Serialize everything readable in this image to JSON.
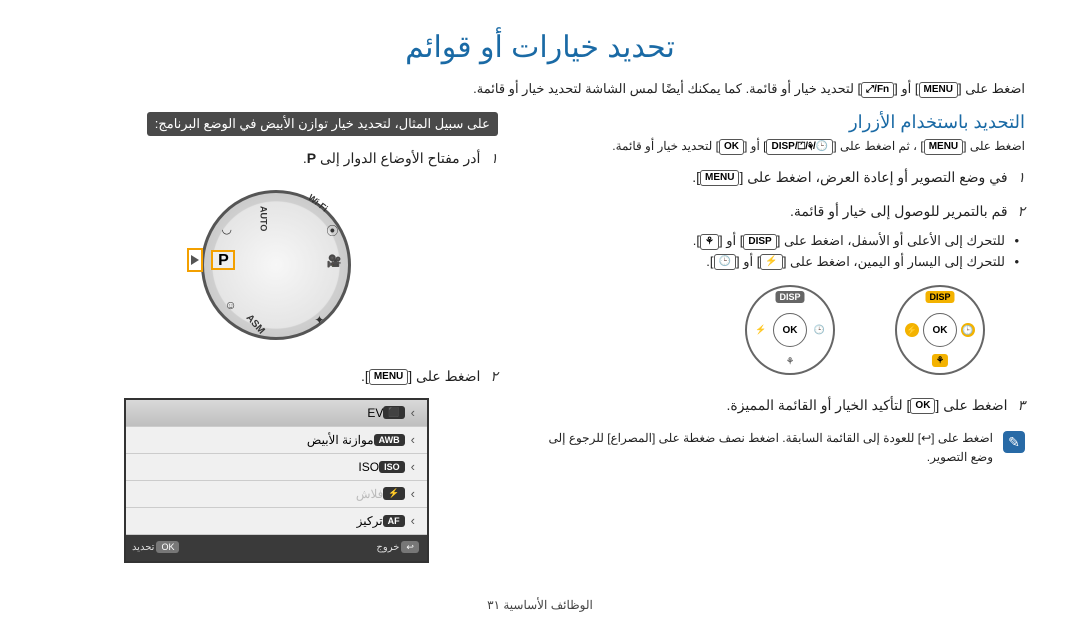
{
  "page_title": "تحديد خيارات أو قوائم",
  "intro_prefix": "اضغط على ",
  "intro_mid1": " أو ",
  "intro_suffix": " لتحديد خيار أو قائمة. كما يمكنك أيضًا لمس الشاشة لتحديد خيار أو قائمة.",
  "key_menu": "MENU",
  "key_fn": "Fn/⤢",
  "section_title": "التحديد باستخدام الأزرار",
  "small_note_a": "اضغط على ",
  "small_note_b": "، ثم اضغط على ",
  "small_note_c": " أو ",
  "small_note_d": " لتحديد خيار أو قائمة.",
  "key_combo": "🕒/⚘/⏍/DISP",
  "key_ok": "OK",
  "step1": "في وضع التصوير أو إعادة العرض، اضغط على ",
  "step2": "قم بالتمرير للوصول إلى خيار أو قائمة.",
  "bullet1a": "للتحرك إلى الأعلى أو الأسفل، اضغط على ",
  "bullet1b": " أو ",
  "key_disp": "DISP",
  "key_flower": "⚘",
  "bullet2a": "للتحرك إلى اليسار أو اليمين، اضغط على ",
  "bullet2b": " أو ",
  "key_flash": "⚡",
  "key_timer": "🕒",
  "step3a": "اضغط على ",
  "step3b": " لتأكيد الخيار أو القائمة المميزة.",
  "tip": "اضغط على [↩] للعودة إلى القائمة السابقة. اضغط نصف ضغطة على [المصراع] للرجوع إلى وضع التصوير.",
  "example_banner": "على سبيل المثال، لتحديد خيار توازن الأبيض في الوضع البرنامج:",
  "left_step1": "أدر مفتاح الأوضاع الدوار إلى ",
  "left_step1_p": "P",
  "left_step2a": "اضغط على ",
  "pad": {
    "disp": "DISP",
    "ok": "OK",
    "flower": "⚘",
    "flash": "⚡",
    "timer": "🕒"
  },
  "dial": {
    "auto": "AUTO",
    "asm": "ASM",
    "wifi": "Wi-Fi",
    "p": "P"
  },
  "lcd": {
    "rows": [
      {
        "label": "EV",
        "pill": "⬛",
        "sel": true,
        "disabled": false
      },
      {
        "label": "موازنة الأبيض",
        "pill": "AWB",
        "sel": false,
        "disabled": false
      },
      {
        "label": "ISO",
        "pill": "ISO",
        "sel": false,
        "disabled": false
      },
      {
        "label": "فلاش",
        "pill": "⚡",
        "sel": false,
        "disabled": true
      },
      {
        "label": "تركيز",
        "pill": "AF",
        "sel": false,
        "disabled": false
      }
    ],
    "footer_exit": "خروج",
    "footer_exit_btn": "↩",
    "footer_sel": "تحديد",
    "footer_sel_btn": "OK"
  },
  "footer": "الوظائف الأساسية  ٣١"
}
